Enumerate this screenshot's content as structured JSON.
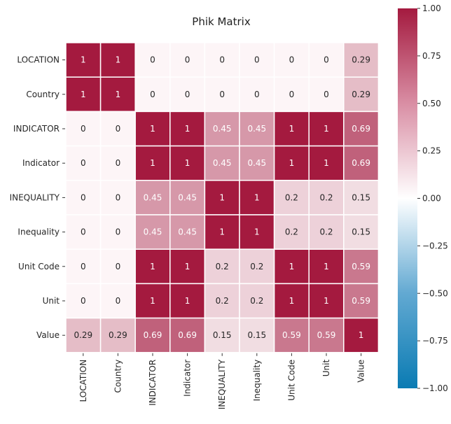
{
  "chart_data": {
    "type": "heatmap",
    "title": "Phik Matrix",
    "rows": [
      "LOCATION",
      "Country",
      "INDICATOR",
      "Indicator",
      "INEQUALITY",
      "Inequality",
      "Unit Code",
      "Unit",
      "Value"
    ],
    "columns": [
      "LOCATION",
      "Country",
      "INDICATOR",
      "Indicator",
      "INEQUALITY",
      "Inequality",
      "Unit Code",
      "Unit",
      "Value"
    ],
    "values": [
      [
        1,
        1,
        0,
        0,
        0,
        0,
        0,
        0,
        0.29
      ],
      [
        1,
        1,
        0,
        0,
        0,
        0,
        0,
        0,
        0.29
      ],
      [
        0,
        0,
        1,
        1,
        0.45,
        0.45,
        1,
        1,
        0.69
      ],
      [
        0,
        0,
        1,
        1,
        0.45,
        0.45,
        1,
        1,
        0.69
      ],
      [
        0,
        0,
        0.45,
        0.45,
        1,
        1,
        0.2,
        0.2,
        0.15
      ],
      [
        0,
        0,
        0.45,
        0.45,
        1,
        1,
        0.2,
        0.2,
        0.15
      ],
      [
        0,
        0,
        1,
        1,
        0.2,
        0.2,
        1,
        1,
        0.59
      ],
      [
        0,
        0,
        1,
        1,
        0.2,
        0.2,
        1,
        1,
        0.59
      ],
      [
        0.29,
        0.29,
        0.69,
        0.69,
        0.15,
        0.15,
        0.59,
        0.59,
        1
      ]
    ],
    "value_labels": [
      [
        "1",
        "1",
        "0",
        "0",
        "0",
        "0",
        "0",
        "0",
        "0.29"
      ],
      [
        "1",
        "1",
        "0",
        "0",
        "0",
        "0",
        "0",
        "0",
        "0.29"
      ],
      [
        "0",
        "0",
        "1",
        "1",
        "0.45",
        "0.45",
        "1",
        "1",
        "0.69"
      ],
      [
        "0",
        "0",
        "1",
        "1",
        "0.45",
        "0.45",
        "1",
        "1",
        "0.69"
      ],
      [
        "0",
        "0",
        "0.45",
        "0.45",
        "1",
        "1",
        "0.2",
        "0.2",
        "0.15"
      ],
      [
        "0",
        "0",
        "0.45",
        "0.45",
        "1",
        "1",
        "0.2",
        "0.2",
        "0.15"
      ],
      [
        "0",
        "0",
        "1",
        "1",
        "0.2",
        "0.2",
        "1",
        "1",
        "0.59"
      ],
      [
        "0",
        "0",
        "1",
        "1",
        "0.2",
        "0.2",
        "1",
        "1",
        "0.59"
      ],
      [
        "0.29",
        "0.29",
        "0.69",
        "0.69",
        "0.15",
        "0.15",
        "0.59",
        "0.59",
        "1"
      ]
    ],
    "colorbar": {
      "range": [
        -1,
        1
      ],
      "ticks": [
        1.0,
        0.75,
        0.5,
        0.25,
        0.0,
        -0.25,
        -0.5,
        -0.75,
        -1.0
      ],
      "tick_labels": [
        "1.00",
        "0.75",
        "0.50",
        "0.25",
        "0.00",
        "−0.25",
        "−0.50",
        "−0.75",
        "−1.00"
      ],
      "colormap": "diverging blue-white-red",
      "colors": {
        "low": "#0a7bb3",
        "mid": "#ffffff",
        "high": "#a41a3f"
      }
    },
    "legend_placement": "right",
    "grid": false,
    "cell_separator_color": "#ffffff"
  }
}
